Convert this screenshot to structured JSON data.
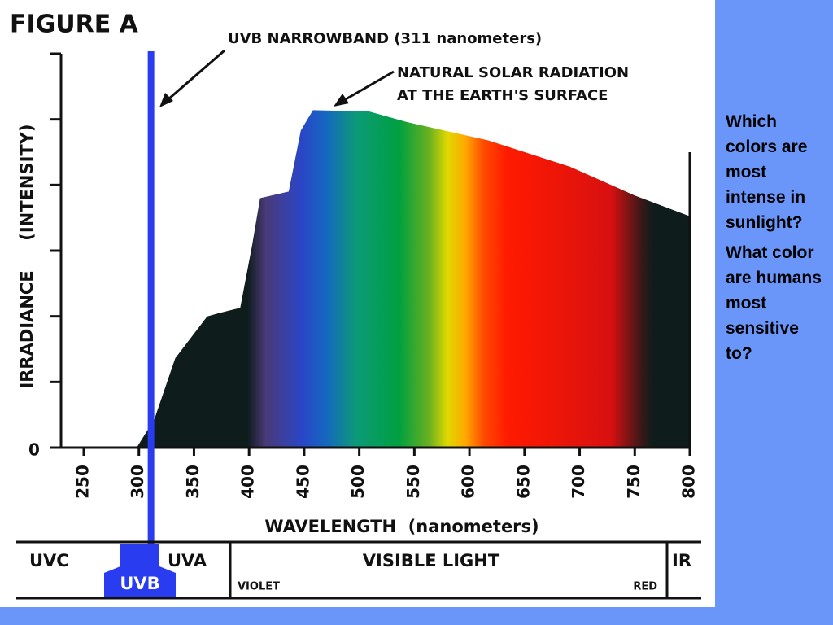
{
  "chart_data": {
    "type": "area",
    "title": "FIGURE A",
    "x_label": "WAVELENGTH  (nanometers)",
    "y_label": "IRRADIANCE     (INTENSITY)",
    "x": [
      298,
      314,
      333,
      362,
      373,
      392,
      403,
      410,
      436,
      447,
      458,
      509,
      543,
      617,
      691,
      750,
      799
    ],
    "values": [
      0,
      0.43,
      1.36,
      2.0,
      2.05,
      2.13,
      3.1,
      3.8,
      3.9,
      4.83,
      5.14,
      5.12,
      4.96,
      4.68,
      4.28,
      3.84,
      3.53
    ],
    "xlim": [
      250,
      800
    ],
    "xticks": [
      250,
      300,
      350,
      400,
      450,
      500,
      550,
      600,
      650,
      700,
      750,
      800
    ],
    "ylim": [
      0,
      6
    ],
    "yticks": [
      0
    ],
    "ytick_marks": [
      1,
      2,
      3,
      4,
      5,
      6
    ],
    "reference_line": {
      "value": 311,
      "color": "#2a3cf0",
      "label": "UVB NARROWBAND (311 nanometers)"
    },
    "annotation": [
      "NATURAL SOLAR RADIATION",
      "AT THE EARTH'S SURFACE"
    ],
    "bands": {
      "uvc": "UVC",
      "uvb": "UVB",
      "uva": "UVA",
      "visible": "VISIBLE LIGHT",
      "violet": "VIOLET",
      "red": "RED",
      "ir": "IR"
    }
  },
  "sidebar": [
    "Which colors are most intense in sunlight?",
    "What color are humans most sensitive to?"
  ]
}
